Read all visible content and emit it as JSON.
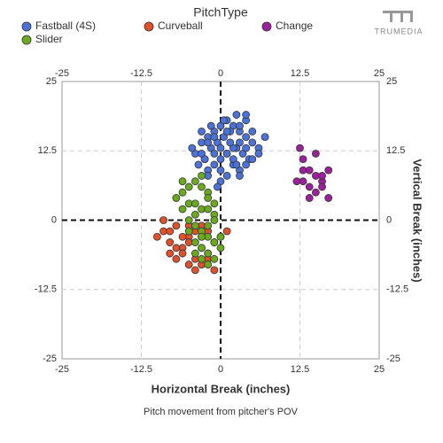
{
  "chart_data": {
    "type": "scatter",
    "legend_title": "PitchType",
    "logo": "TRUMEDIA",
    "x_label": "Horizontal Break (inches)",
    "y_label": "Vertical Break (inches)",
    "caption": "Pitch movement from pitcher's POV",
    "xlim": [
      -25,
      25
    ],
    "ylim": [
      -25,
      25
    ],
    "xticks": [
      -25,
      -12.5,
      0,
      12.5,
      25
    ],
    "yticks": [
      -25,
      -12.5,
      0,
      12.5,
      25
    ],
    "grid": true,
    "series": [
      {
        "name": "Fastball (4S)",
        "color": "#4a72d9",
        "x": [
          -4,
          -3,
          -2,
          -1,
          0,
          1,
          2,
          3,
          4,
          5,
          -3.5,
          -2.5,
          -1.5,
          -0.5,
          0.5,
          1.5,
          2.5,
          3.5,
          4.5,
          -2,
          -1,
          0,
          1,
          2,
          3,
          4,
          -3,
          -1.5,
          0.5,
          2.5,
          4,
          6,
          -4.5,
          -2,
          0,
          2,
          3,
          5,
          -1,
          1,
          3,
          7,
          -3,
          -1,
          1,
          2,
          4,
          0,
          -2,
          3,
          1,
          5,
          6,
          -0.5,
          1.5,
          2.5,
          -2.5,
          0,
          4
        ],
        "y": [
          12,
          14,
          15,
          16,
          17,
          18,
          17,
          16,
          15,
          14,
          10,
          11,
          13,
          14,
          15,
          16,
          13,
          12,
          11,
          9,
          10,
          11,
          12,
          13,
          14,
          13,
          16,
          17,
          18,
          19,
          18,
          13,
          13,
          8,
          9,
          10,
          9,
          11,
          15,
          16,
          17,
          15,
          12,
          12,
          12,
          11,
          10,
          7,
          14,
          8,
          8,
          16,
          12,
          6,
          14,
          10,
          11,
          13,
          19
        ]
      },
      {
        "name": "Curveball",
        "color": "#e0502a",
        "x": [
          -10,
          -9,
          -8,
          -7,
          -6,
          -5,
          -4,
          -3,
          -2,
          -1,
          -9,
          -8,
          -7,
          -6,
          -5,
          -4,
          -3,
          -2,
          -8,
          -6,
          -5,
          -4,
          -3,
          -1,
          -7,
          -5,
          -3,
          -2,
          0,
          1
        ],
        "y": [
          -3,
          -2,
          -4,
          -1,
          -5,
          -3,
          -2,
          -1,
          -6,
          -4,
          0,
          -6,
          -7,
          -3,
          -8,
          -9,
          -5,
          -7,
          -2,
          -6,
          -1,
          -7,
          -8,
          -9,
          -5,
          -4,
          -3,
          -2,
          -3,
          -2
        ]
      },
      {
        "name": "Change",
        "color": "#9c1f9c",
        "x": [
          12.5,
          13,
          14,
          15,
          16,
          17,
          13,
          14,
          15,
          16,
          12,
          14,
          16,
          17,
          13,
          15
        ],
        "y": [
          13,
          11,
          9,
          8,
          7,
          9,
          7,
          6,
          5,
          8,
          7,
          4,
          6,
          4,
          9,
          12
        ]
      },
      {
        "name": "Slider",
        "color": "#6aab1e",
        "x": [
          -7,
          -6,
          -5,
          -4,
          -3,
          -2,
          -1,
          -6,
          -5,
          -4,
          -3,
          -2,
          -5,
          -4,
          -3,
          -2,
          -1,
          -4,
          -3,
          -2,
          -1,
          0,
          -5,
          -4,
          -3,
          -2,
          -1,
          -3,
          -2,
          -1,
          -6,
          -4,
          -2,
          -3,
          0
        ],
        "y": [
          4,
          5,
          6,
          7,
          8,
          5,
          3,
          2,
          3,
          1,
          2,
          4,
          0,
          -1,
          -2,
          -3,
          1,
          -4,
          -5,
          -6,
          -7,
          -5,
          -2,
          -6,
          -3,
          -8,
          -4,
          6,
          2,
          0,
          7,
          3,
          -1,
          -7,
          -3
        ]
      }
    ]
  }
}
